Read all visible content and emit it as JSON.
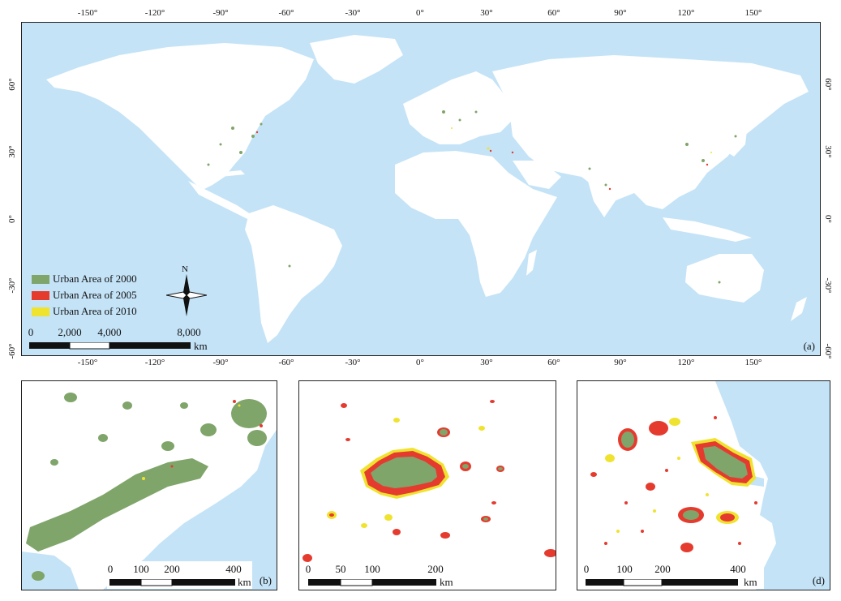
{
  "main_map": {
    "top_ticks": [
      "-150°",
      "-120°",
      "-90°",
      "-60°",
      "-30°",
      "0°",
      "30°",
      "60°",
      "90°",
      "120°",
      "150°"
    ],
    "bottom_ticks": [
      "-150°",
      "-120°",
      "-90°",
      "-60°",
      "-30°",
      "0°",
      "30°",
      "60°",
      "90°",
      "120°",
      "150°"
    ],
    "left_ticks": [
      "60°",
      "30°",
      "0°",
      "-30°",
      "-60°"
    ],
    "right_ticks": [
      "60°",
      "30°",
      "0°",
      "-30°",
      "-60°"
    ],
    "legend": [
      {
        "label": "Urban Area of 2000",
        "color": "#7fa56a"
      },
      {
        "label": "Urban Area of 2005",
        "color": "#e53b2f"
      },
      {
        "label": "Urban Area of 2010",
        "color": "#efe32f"
      }
    ],
    "north_label": "N",
    "scalebar": {
      "labels": [
        "0",
        "2,000",
        "4,000",
        "8,000"
      ],
      "unit": "km"
    },
    "panel_label": "(a)"
  },
  "panel_b": {
    "scalebar": {
      "labels": [
        "0",
        "100",
        "200",
        "400"
      ],
      "unit": "km"
    },
    "panel_label": "(b)"
  },
  "panel_c": {
    "scalebar": {
      "labels": [
        "0",
        "50",
        "100",
        "200"
      ],
      "unit": "km"
    }
  },
  "panel_d": {
    "scalebar": {
      "labels": [
        "0",
        "100",
        "200",
        "400"
      ],
      "unit": "km"
    },
    "panel_label": "(d)"
  },
  "colors": {
    "ocean": "#c4e3f7",
    "land": "#ffffff",
    "urban_2000": "#7fa56a",
    "urban_2005": "#e53b2f",
    "urban_2010": "#efe32f"
  }
}
